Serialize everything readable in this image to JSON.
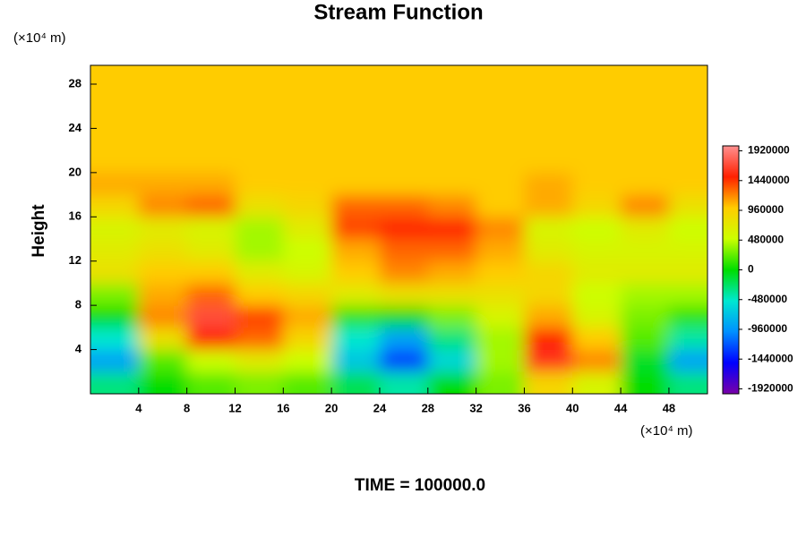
{
  "chart_data": {
    "type": "heatmap",
    "title": "Stream Function",
    "ylabel": "Height",
    "xunit": "(×10⁴ m)",
    "yunit": "(×10⁴ m)",
    "footer": "TIME = 100000.0",
    "x": [
      2,
      6,
      10,
      14,
      18,
      22,
      26,
      30,
      34,
      38,
      42,
      46,
      50
    ],
    "y": [
      1,
      3,
      5,
      7,
      9,
      11,
      13,
      15,
      17,
      19,
      21,
      23,
      25,
      27,
      29
    ],
    "z": [
      [
        -300000,
        0,
        200000,
        300000,
        200000,
        -200000,
        -400000,
        0,
        300000,
        900000,
        600000,
        0,
        -300000
      ],
      [
        -900000,
        200000,
        500000,
        700000,
        500000,
        -700000,
        -1300000,
        -600000,
        400000,
        1600000,
        1200000,
        -100000,
        -900000
      ],
      [
        -500000,
        800000,
        1500000,
        1300000,
        900000,
        -500000,
        -900000,
        -300000,
        400000,
        1500000,
        1000000,
        200000,
        -400000
      ],
      [
        0,
        1200000,
        1700000,
        1400000,
        1100000,
        100000,
        0,
        300000,
        600000,
        1100000,
        600000,
        300000,
        100000
      ],
      [
        300000,
        1100000,
        1300000,
        1000000,
        900000,
        700000,
        800000,
        800000,
        800000,
        900000,
        500000,
        400000,
        400000
      ],
      [
        800000,
        1000000,
        1000000,
        700000,
        600000,
        1000000,
        1200000,
        1100000,
        1000000,
        900000,
        700000,
        700000,
        700000
      ],
      [
        700000,
        800000,
        700000,
        400000,
        500000,
        1100000,
        1300000,
        1300000,
        1100000,
        700000,
        600000,
        600000,
        600000
      ],
      [
        600000,
        700000,
        600000,
        400000,
        700000,
        1400000,
        1500000,
        1500000,
        1200000,
        600000,
        500000,
        700000,
        500000
      ],
      [
        900000,
        1200000,
        1300000,
        800000,
        900000,
        1300000,
        1300000,
        1200000,
        1000000,
        1100000,
        900000,
        1200000,
        800000
      ],
      [
        1100000,
        1100000,
        1100000,
        1000000,
        1000000,
        1000000,
        1000000,
        1000000,
        1000000,
        1100000,
        1000000,
        1000000,
        1000000
      ],
      [
        1000000,
        1000000,
        1000000,
        1000000,
        1000000,
        1000000,
        1000000,
        1000000,
        1000000,
        1000000,
        1000000,
        1000000,
        1000000
      ],
      [
        1000000,
        1000000,
        1000000,
        1000000,
        1000000,
        1000000,
        1000000,
        1000000,
        1000000,
        1000000,
        1000000,
        1000000,
        1000000
      ],
      [
        1000000,
        1000000,
        1000000,
        1000000,
        1000000,
        1000000,
        1000000,
        1000000,
        1000000,
        1000000,
        1000000,
        1000000,
        1000000
      ],
      [
        1000000,
        1000000,
        1000000,
        1000000,
        1000000,
        1000000,
        1000000,
        1000000,
        1000000,
        1000000,
        1000000,
        1000000,
        1000000
      ],
      [
        1000000,
        1000000,
        1000000,
        1000000,
        1000000,
        1000000,
        1000000,
        1000000,
        1000000,
        1000000,
        1000000,
        1000000,
        1000000
      ]
    ],
    "xlim": [
      0,
      51.2
    ],
    "ylim": [
      0,
      29.7
    ],
    "xticks": [
      4,
      8,
      12,
      16,
      20,
      24,
      28,
      32,
      36,
      40,
      44,
      48
    ],
    "yticks": [
      4,
      8,
      12,
      16,
      20,
      24,
      28
    ],
    "zlim": [
      -2000000,
      2000000
    ],
    "zticks": [
      1920000,
      1440000,
      960000,
      480000,
      0,
      -480000,
      -960000,
      -1440000,
      -1920000
    ],
    "colors": [
      "#7a00a8",
      "#0000ff",
      "#0090ff",
      "#00e8d0",
      "#00dd00",
      "#ccff00",
      "#ffcc00",
      "#ff2000",
      "#ff9090"
    ]
  }
}
